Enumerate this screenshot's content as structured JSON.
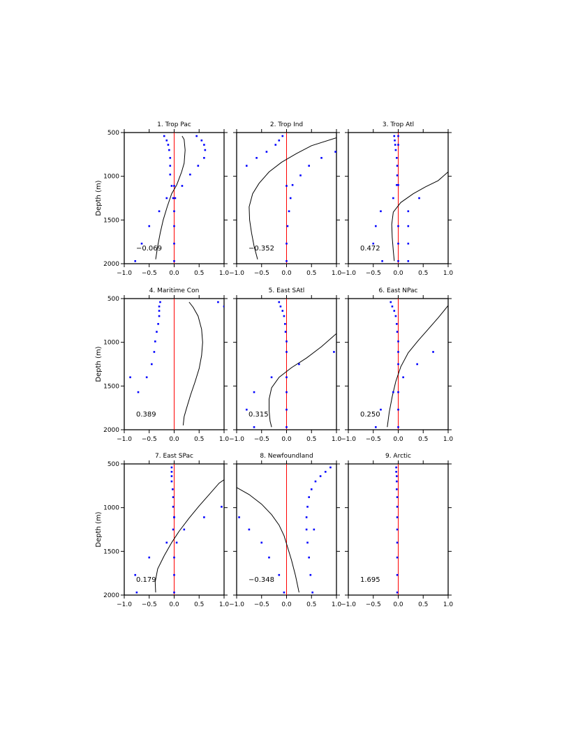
{
  "figure": {
    "ylabel": "Depth (m)",
    "colors": {
      "profile": "#000000",
      "points": "#0000ff",
      "zero_line": "#ff0000",
      "frame": "#000000"
    }
  },
  "chart_data": [
    {
      "type": "line",
      "title": "1. Trop Pac",
      "annotation": "−0.069",
      "xlim": [
        -1.0,
        1.0
      ],
      "ylim": [
        2000,
        500
      ],
      "y_reversed": true,
      "xticks": [
        "−1.0",
        "−0.5",
        "0.0",
        "0.5",
        "1.0"
      ],
      "yticks": [
        "500",
        "1000",
        "1500",
        "2000"
      ],
      "ylabel": "Depth (m)",
      "profile": {
        "x": [
          0.16,
          0.2,
          0.22,
          0.2,
          0.15,
          0.05,
          -0.05,
          -0.14,
          -0.22,
          -0.28,
          -0.33,
          -0.37
        ],
        "y": [
          540,
          580,
          700,
          850,
          950,
          1100,
          1200,
          1350,
          1500,
          1650,
          1800,
          1950
        ]
      },
      "points": {
        "x": [
          -0.2,
          -0.15,
          -0.12,
          -0.1,
          -0.08,
          -0.08,
          -0.08,
          -0.05,
          -0.15,
          -0.02,
          -0.3,
          -0.5,
          -0.65,
          -0.78,
          0.45,
          0.55,
          0.6,
          0.62,
          0.6,
          0.48,
          0.32,
          0.16,
          0.02,
          0.0,
          0.0,
          0.0,
          0.0,
          0.0
        ],
        "y": [
          540,
          590,
          640,
          700,
          790,
          880,
          980,
          1110,
          1250,
          1250,
          1400,
          1570,
          1770,
          1970,
          540,
          590,
          640,
          700,
          790,
          880,
          980,
          1110,
          1250,
          1400,
          1570,
          1770,
          1970,
          1110
        ]
      }
    },
    {
      "type": "line",
      "title": "2. Trop Ind",
      "annotation": "−0.352",
      "xlim": [
        -1.0,
        1.0
      ],
      "ylim": [
        2000,
        500
      ],
      "y_reversed": true,
      "xticks": [
        "−1.0",
        "−0.5",
        "0.0",
        "0.5",
        "1.0"
      ],
      "yticks": [
        "500",
        "1000",
        "1500",
        "2000"
      ],
      "ylabel": "",
      "profile": {
        "x": [
          1.0,
          0.5,
          0.2,
          -0.1,
          -0.35,
          -0.55,
          -0.68,
          -0.75,
          -0.74,
          -0.7,
          -0.65,
          -0.58
        ],
        "y": [
          560,
          650,
          740,
          840,
          950,
          1080,
          1200,
          1350,
          1500,
          1650,
          1800,
          1950
        ]
      },
      "points": {
        "x": [
          -0.08,
          -0.15,
          -0.22,
          -0.4,
          -0.6,
          -0.8,
          0.98,
          0.7,
          0.45,
          0.28,
          0.12,
          0.08,
          0.05,
          0.02,
          0.0,
          0.0,
          0.0
        ],
        "y": [
          540,
          590,
          640,
          720,
          790,
          880,
          720,
          790,
          880,
          990,
          1100,
          1250,
          1400,
          1570,
          1770,
          1970,
          1110
        ]
      }
    },
    {
      "type": "line",
      "title": "3. Trop Atl",
      "annotation": "0.472",
      "xlim": [
        -1.0,
        1.0
      ],
      "ylim": [
        2000,
        500
      ],
      "y_reversed": true,
      "xticks": [
        "−1.0",
        "−0.5",
        "0.0",
        "0.5",
        "1.0"
      ],
      "yticks": [
        "500",
        "1000",
        "1500",
        "2000"
      ],
      "ylabel": "",
      "profile": {
        "x": [
          1.0,
          0.8,
          0.55,
          0.3,
          0.05,
          -0.1,
          -0.13,
          -0.12,
          -0.1,
          -0.08
        ],
        "y": [
          950,
          1050,
          1120,
          1200,
          1300,
          1410,
          1550,
          1700,
          1850,
          1970
        ]
      },
      "points": {
        "x": [
          -0.08,
          -0.07,
          -0.06,
          -0.05,
          -0.03,
          -0.02,
          -0.02,
          -0.03,
          -0.1,
          -0.35,
          -0.45,
          -0.5,
          -0.32,
          0.0,
          0.0,
          0.0,
          0.0,
          0.42,
          0.2,
          0.2,
          0.2,
          0.2,
          0.0,
          0.0
        ],
        "y": [
          540,
          590,
          640,
          700,
          790,
          880,
          990,
          1100,
          1250,
          1400,
          1570,
          1770,
          1970,
          1100,
          1570,
          1770,
          1970,
          1250,
          1400,
          1570,
          1770,
          1970,
          540,
          640
        ]
      }
    },
    {
      "type": "line",
      "title": "4. Maritime Con",
      "annotation": "0.389",
      "xlim": [
        -1.0,
        1.0
      ],
      "ylim": [
        2000,
        500
      ],
      "y_reversed": true,
      "xticks": [
        "−1.0",
        "−0.5",
        "0.0",
        "0.5",
        "1.0"
      ],
      "yticks": [
        "500",
        "1000",
        "1500",
        "2000"
      ],
      "ylabel": "Depth (m)",
      "profile": {
        "x": [
          0.3,
          0.38,
          0.48,
          0.55,
          0.57,
          0.55,
          0.5,
          0.42,
          0.33,
          0.25,
          0.2,
          0.18
        ],
        "y": [
          540,
          600,
          700,
          850,
          1000,
          1150,
          1300,
          1450,
          1600,
          1750,
          1850,
          1950
        ]
      },
      "points": {
        "x": [
          -0.28,
          -0.3,
          -0.3,
          -0.3,
          -0.32,
          -0.35,
          -0.38,
          -0.4,
          -0.45,
          -0.55,
          -0.72,
          -0.88,
          0.88,
          1.0
        ],
        "y": [
          540,
          590,
          640,
          700,
          790,
          880,
          990,
          1110,
          1250,
          1400,
          1570,
          1400,
          540,
          590
        ]
      }
    },
    {
      "type": "line",
      "title": "5. East SAtl",
      "annotation": "0.315",
      "xlim": [
        -1.0,
        1.0
      ],
      "ylim": [
        2000,
        500
      ],
      "y_reversed": true,
      "xticks": [
        "−1.0",
        "−0.5",
        "0.0",
        "0.5",
        "1.0"
      ],
      "yticks": [
        "500",
        "1000",
        "1500",
        "2000"
      ],
      "ylabel": "",
      "profile": {
        "x": [
          1.0,
          0.7,
          0.4,
          0.1,
          -0.15,
          -0.3,
          -0.35,
          -0.35,
          -0.33,
          -0.3
        ],
        "y": [
          900,
          1050,
          1180,
          1290,
          1400,
          1520,
          1650,
          1780,
          1900,
          1970
        ]
      },
      "points": {
        "x": [
          -0.15,
          -0.12,
          -0.08,
          -0.05,
          -0.03,
          -0.02,
          0.0,
          0.0,
          -0.3,
          -0.65,
          -0.8,
          -0.65,
          0.25,
          0.95,
          0.0,
          0.0,
          0.0,
          0.0
        ],
        "y": [
          540,
          590,
          640,
          700,
          790,
          880,
          990,
          1110,
          1400,
          1570,
          1770,
          1970,
          1250,
          1110,
          1400,
          1570,
          1770,
          1970
        ]
      }
    },
    {
      "type": "line",
      "title": "6. East NPac",
      "annotation": "0.250",
      "xlim": [
        -1.0,
        1.0
      ],
      "ylim": [
        2000,
        500
      ],
      "y_reversed": true,
      "xticks": [
        "−1.0",
        "−0.5",
        "0.0",
        "0.5",
        "1.0"
      ],
      "yticks": [
        "500",
        "1000",
        "1500",
        "2000"
      ],
      "ylabel": "",
      "profile": {
        "x": [
          1.0,
          0.9,
          0.8,
          0.6,
          0.4,
          0.2,
          0.05,
          -0.05,
          -0.12,
          -0.18,
          -0.22
        ],
        "y": [
          580,
          650,
          720,
          850,
          980,
          1120,
          1280,
          1450,
          1620,
          1800,
          1970
        ]
      },
      "points": {
        "x": [
          -0.15,
          -0.12,
          -0.08,
          -0.05,
          -0.03,
          -0.02,
          0.0,
          0.0,
          0.0,
          0.1,
          -0.1,
          -0.35,
          -0.45,
          0.7,
          0.38,
          0.0,
          0.0,
          0.0
        ],
        "y": [
          540,
          590,
          640,
          700,
          790,
          880,
          990,
          1110,
          1250,
          1400,
          1570,
          1770,
          1970,
          1110,
          1250,
          1570,
          1770,
          1970
        ]
      }
    },
    {
      "type": "line",
      "title": "7. East SPac",
      "annotation": "0.179",
      "xlim": [
        -1.0,
        1.0
      ],
      "ylim": [
        2000,
        500
      ],
      "y_reversed": true,
      "xticks": [
        "−1.0",
        "−0.5",
        "0.0",
        "0.5",
        "1.0"
      ],
      "yticks": [
        "500",
        "1000",
        "1500",
        "2000"
      ],
      "ylabel": "Depth (m)",
      "profile": {
        "x": [
          1.0,
          0.9,
          0.7,
          0.5,
          0.3,
          0.1,
          -0.05,
          -0.2,
          -0.33,
          -0.38,
          -0.37
        ],
        "y": [
          680,
          720,
          850,
          980,
          1120,
          1270,
          1400,
          1550,
          1700,
          1850,
          1970
        ]
      },
      "points": {
        "x": [
          -0.05,
          -0.05,
          -0.05,
          -0.05,
          -0.03,
          -0.02,
          -0.02,
          0.0,
          -0.02,
          -0.15,
          -0.5,
          -0.78,
          -0.75,
          0.95,
          0.6,
          0.2,
          0.05,
          0.0,
          0.0,
          0.0,
          0.0
        ],
        "y": [
          540,
          590,
          640,
          700,
          790,
          880,
          990,
          1110,
          1250,
          1400,
          1570,
          1770,
          1970,
          990,
          1110,
          1250,
          1400,
          1570,
          1770,
          1970,
          1110
        ]
      }
    },
    {
      "type": "line",
      "title": "8. Newfoundland",
      "annotation": "−0.348",
      "xlim": [
        -1.0,
        1.0
      ],
      "ylim": [
        2000,
        500
      ],
      "y_reversed": true,
      "xticks": [
        "−1.0",
        "−0.5",
        "0.0",
        "0.5",
        "1.0"
      ],
      "yticks": [
        "500",
        "1000",
        "1500",
        "2000"
      ],
      "ylabel": "",
      "profile": {
        "x": [
          -1.0,
          -0.75,
          -0.5,
          -0.3,
          -0.15,
          -0.05,
          0.02,
          0.1,
          0.18,
          0.25
        ],
        "y": [
          770,
          850,
          960,
          1080,
          1200,
          1320,
          1450,
          1600,
          1780,
          1970
        ]
      },
      "points": {
        "x": [
          0.88,
          0.78,
          0.68,
          0.58,
          0.5,
          0.45,
          0.42,
          0.4,
          0.4,
          0.42,
          0.45,
          0.48,
          0.52,
          0.55,
          -0.95,
          -0.75,
          -0.5,
          -0.35,
          -0.15,
          -0.05
        ],
        "y": [
          540,
          590,
          640,
          700,
          790,
          880,
          990,
          1110,
          1250,
          1400,
          1570,
          1770,
          1970,
          1250,
          1110,
          1250,
          1400,
          1570,
          1770,
          1970
        ]
      }
    },
    {
      "type": "line",
      "title": "9. Arctic",
      "annotation": "1.695",
      "xlim": [
        -1.0,
        1.0
      ],
      "ylim": [
        2000,
        500
      ],
      "y_reversed": true,
      "xticks": [
        "−1.0",
        "−0.5",
        "0.0",
        "0.5",
        "1.0"
      ],
      "yticks": [
        "500",
        "1000",
        "1500",
        "2000"
      ],
      "ylabel": "",
      "profile": {
        "x": [],
        "y": []
      },
      "points": {
        "x": [
          -0.04,
          -0.04,
          -0.03,
          -0.03,
          -0.03,
          -0.02,
          -0.02,
          -0.02,
          -0.02,
          -0.02,
          -0.02,
          -0.02,
          -0.02
        ],
        "y": [
          540,
          590,
          640,
          700,
          790,
          880,
          990,
          1110,
          1250,
          1400,
          1570,
          1770,
          1970
        ]
      }
    }
  ]
}
